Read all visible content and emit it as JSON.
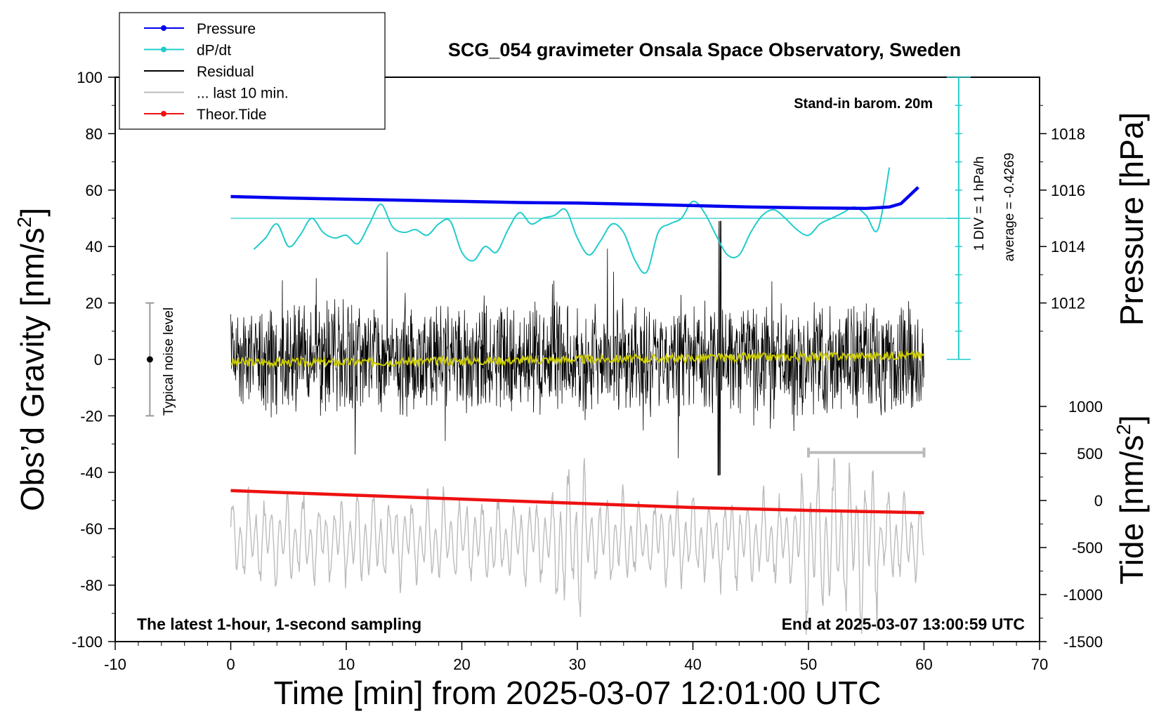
{
  "chart_data": {
    "type": "line",
    "title": "SCG_054 gravimeter Onsala Space Observatory, Sweden",
    "xlabel": "Time [min] from 2025-03-07 12:01:00 UTC",
    "ylabel_left_prefix": "Obs’d Gravity [nm/s",
    "ylabel_right_top": "Pressure [hPa]",
    "ylabel_right_bottom_prefix": "Tide [nm/s",
    "ylabel_superscript": "2",
    "ylabel_suffix": "]",
    "xlim": [
      -10,
      70
    ],
    "ylim": [
      -100,
      100
    ],
    "x_ticks": [
      -10,
      0,
      10,
      20,
      30,
      40,
      50,
      60,
      70
    ],
    "x_tick_labels": [
      "-10",
      "0",
      "10",
      "20",
      "30",
      "40",
      "50",
      "60",
      "70"
    ],
    "y_ticks": [
      -100,
      -80,
      -60,
      -40,
      -20,
      0,
      20,
      40,
      60,
      80,
      100
    ],
    "y_tick_labels": [
      "-100",
      "-80",
      "-60",
      "-40",
      "-20",
      "0",
      "20",
      "40",
      "60",
      "80",
      "100"
    ],
    "pressure_axis": {
      "ticks": [
        1012,
        1014,
        1016,
        1018
      ],
      "tick_labels": [
        "1012",
        "1014",
        "1016",
        "1018"
      ],
      "mapping": {
        "hPa_1012_at_gravity": 20,
        "gravity_per_hPa": 10
      }
    },
    "tide_axis": {
      "ticks": [
        -1500,
        -1000,
        -500,
        0,
        500,
        1000
      ],
      "tick_labels": [
        "-1500",
        "-1000",
        "-500",
        "0",
        "500",
        "1000"
      ],
      "mapping": {
        "tide_0_at_gravity": -50,
        "gravity_per_tide_unit": 0.03333
      }
    },
    "legend": {
      "position": "top-left",
      "entries": [
        {
          "label": "Pressure",
          "color": "#0000ee",
          "marker": true
        },
        {
          "label": "dP/dt",
          "color": "#22cccc",
          "marker": true
        },
        {
          "label": "Residual",
          "color": "#000000",
          "marker": false
        },
        {
          "label": "... last 10 min.",
          "color": "#bbbbbb",
          "marker": false
        },
        {
          "label": "Theor.Tide",
          "color": "#ee1111",
          "marker": true
        }
      ]
    },
    "annotations": {
      "barometer": "Stand-in barom. 20m",
      "div_scale": "1 DIV = 1 hPa/h",
      "average": "average = -0.4269",
      "noise_label": "Typical noise level",
      "footer_left": "The latest 1-hour, 1-second sampling",
      "footer_right": "End at 2025-03-07 13:00:59 UTC"
    },
    "noise_bar": {
      "x": -7,
      "y_low": -20,
      "y_high": 20,
      "center": 0
    },
    "series": [
      {
        "name": "Pressure",
        "color": "#0000ee",
        "unit": "hPa",
        "x": [
          0,
          5,
          10,
          15,
          20,
          25,
          30,
          35,
          40,
          45,
          50,
          55,
          57,
          58,
          59.5
        ],
        "values": [
          1015.77,
          1015.72,
          1015.68,
          1015.64,
          1015.6,
          1015.56,
          1015.54,
          1015.5,
          1015.45,
          1015.4,
          1015.37,
          1015.35,
          1015.4,
          1015.52,
          1016.1
        ]
      },
      {
        "name": "dP/dt",
        "color": "#22cccc",
        "baseline_gravity": 50,
        "x": [
          2,
          3,
          4,
          5,
          6,
          7,
          8,
          9,
          10,
          11,
          12,
          13,
          14,
          15,
          16,
          17,
          18,
          19,
          20,
          21,
          22,
          23,
          24,
          25,
          26,
          27,
          28,
          29,
          30,
          31,
          32,
          33,
          34,
          35,
          36,
          37,
          38,
          39,
          40,
          41,
          42,
          43,
          44,
          45,
          46,
          47,
          48,
          49,
          50,
          51,
          52,
          53,
          54,
          55,
          56,
          57
        ],
        "values": [
          39,
          43,
          48,
          40,
          44,
          50,
          45,
          43,
          44,
          41,
          48,
          55,
          47,
          45,
          46,
          44,
          48,
          49,
          38,
          35,
          40,
          38,
          46,
          52,
          48,
          50,
          51,
          53,
          43,
          37,
          42,
          48,
          45,
          35,
          31,
          45,
          48,
          50,
          56,
          52,
          44,
          37,
          37,
          45,
          51,
          53,
          50,
          46,
          44,
          48,
          50,
          52,
          54,
          51,
          46,
          68
        ]
      },
      {
        "name": "Residual",
        "color": "#000000",
        "x_range": [
          0,
          60
        ],
        "y_approx_range": [
          -42,
          50
        ],
        "values_note": "1-second samples, noise ±20 nm/s²"
      },
      {
        "name": "Residual trend",
        "color": "#cccc00",
        "x": [
          0,
          10,
          20,
          30,
          40,
          50,
          60
        ],
        "values": [
          -1,
          -1,
          -0.5,
          0,
          0.5,
          1,
          1.5
        ]
      },
      {
        "name": "... last 10 min.",
        "color": "#bbbbbb",
        "x_range": [
          0,
          60
        ],
        "y_approx_range": [
          -98,
          -35
        ],
        "values_note": "residual of last 10 min, repeated across axis"
      },
      {
        "name": "Theor.Tide",
        "color": "#ee1111",
        "unit": "nm/s²",
        "x": [
          0,
          10,
          20,
          30,
          40,
          50,
          60
        ],
        "values": [
          105,
          60,
          15,
          -30,
          -75,
          -105,
          -130
        ]
      }
    ],
    "last10_marker": {
      "x_start": 50,
      "x_end": 60,
      "y": -33
    }
  }
}
